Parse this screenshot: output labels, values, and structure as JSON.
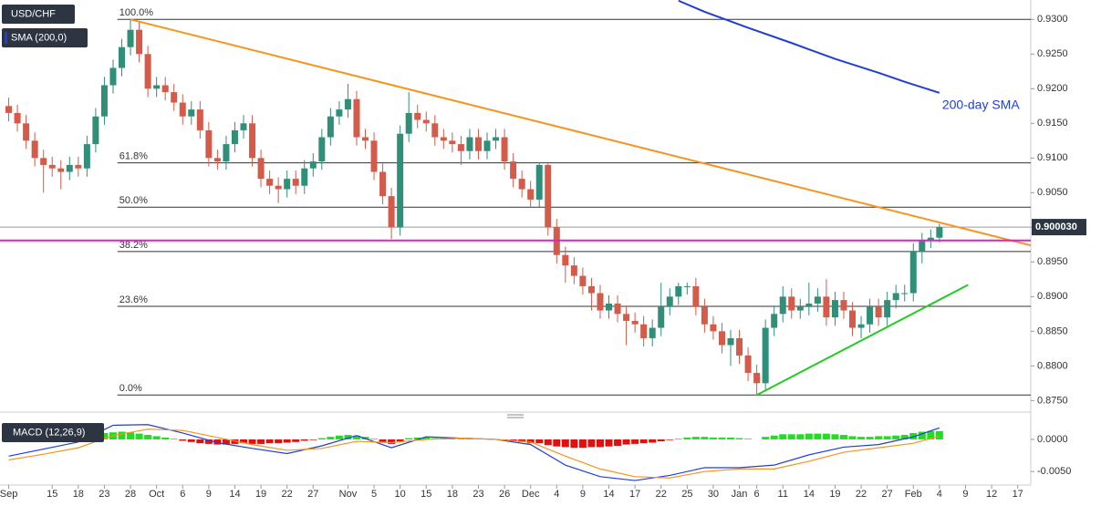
{
  "chart_data": {
    "type": "candlestick",
    "legend": [
      "USD/CHF",
      "SMA (200,0)"
    ],
    "ylim": [
      0.8736,
      0.9328
    ],
    "yticks": [
      {
        "value": 0.93,
        "label": "0.9300"
      },
      {
        "value": 0.925,
        "label": "0.9250"
      },
      {
        "value": 0.92,
        "label": "0.9200"
      },
      {
        "value": 0.915,
        "label": "0.9150"
      },
      {
        "value": 0.91,
        "label": "0.9100"
      },
      {
        "value": 0.905,
        "label": "0.9050"
      },
      {
        "value": 0.9,
        "label": "0.9000"
      },
      {
        "value": 0.895,
        "label": "0.8950"
      },
      {
        "value": 0.89,
        "label": "0.8900"
      },
      {
        "value": 0.885,
        "label": "0.8850"
      },
      {
        "value": 0.88,
        "label": "0.8800"
      },
      {
        "value": 0.875,
        "label": "0.8750"
      }
    ],
    "xlim": [
      -1,
      117.5
    ],
    "xticks": [
      {
        "value": 0,
        "label": "Sep"
      },
      {
        "value": 5,
        "label": "15"
      },
      {
        "value": 8,
        "label": "18"
      },
      {
        "value": 11,
        "label": "23"
      },
      {
        "value": 14,
        "label": "28"
      },
      {
        "value": 17,
        "label": "Oct"
      },
      {
        "value": 20,
        "label": "6"
      },
      {
        "value": 23,
        "label": "9"
      },
      {
        "value": 26,
        "label": "14"
      },
      {
        "value": 29,
        "label": "19"
      },
      {
        "value": 32,
        "label": "22"
      },
      {
        "value": 35,
        "label": "27"
      },
      {
        "value": 39,
        "label": "Nov"
      },
      {
        "value": 42,
        "label": "5"
      },
      {
        "value": 45,
        "label": "10"
      },
      {
        "value": 48,
        "label": "15"
      },
      {
        "value": 51,
        "label": "18"
      },
      {
        "value": 54,
        "label": "23"
      },
      {
        "value": 57,
        "label": "26"
      },
      {
        "value": 60,
        "label": "Dec"
      },
      {
        "value": 63,
        "label": "4"
      },
      {
        "value": 66,
        "label": "9"
      },
      {
        "value": 69,
        "label": "14"
      },
      {
        "value": 72,
        "label": "17"
      },
      {
        "value": 75,
        "label": "22"
      },
      {
        "value": 78,
        "label": "25"
      },
      {
        "value": 81,
        "label": "30"
      },
      {
        "value": 84,
        "label": "Jan"
      },
      {
        "value": 86,
        "label": "6"
      },
      {
        "value": 89,
        "label": "11"
      },
      {
        "value": 92,
        "label": "14"
      },
      {
        "value": 95,
        "label": "19"
      },
      {
        "value": 98,
        "label": "22"
      },
      {
        "value": 101,
        "label": "27"
      },
      {
        "value": 104,
        "label": "Feb"
      },
      {
        "value": 107,
        "label": "4"
      },
      {
        "value": 110,
        "label": "9"
      },
      {
        "value": 113,
        "label": "12"
      },
      {
        "value": 116,
        "label": "17"
      }
    ],
    "up_color": "#2f8f79",
    "down_color": "#d45a4a",
    "open": [
      0.9175,
      0.9165,
      0.915,
      0.9125,
      0.91,
      0.909,
      0.9085,
      0.908,
      0.909,
      0.9085,
      0.912,
      0.916,
      0.9205,
      0.923,
      0.926,
      0.9285,
      0.925,
      0.92,
      0.9205,
      0.9195,
      0.918,
      0.916,
      0.917,
      0.914,
      0.91,
      0.9095,
      0.912,
      0.914,
      0.915,
      0.91,
      0.907,
      0.906,
      0.9055,
      0.907,
      0.906,
      0.9085,
      0.9095,
      0.913,
      0.916,
      0.917,
      0.9185,
      0.913,
      0.9125,
      0.908,
      0.9045,
      0.9,
      0.9135,
      0.9165,
      0.9155,
      0.915,
      0.913,
      0.9125,
      0.912,
      0.911,
      0.913,
      0.911,
      0.9125,
      0.913,
      0.9095,
      0.907,
      0.9055,
      0.904,
      0.909,
      0.9,
      0.896,
      0.8945,
      0.893,
      0.8915,
      0.8905,
      0.888,
      0.889,
      0.8875,
      0.8865,
      0.886,
      0.884,
      0.8855,
      0.8885,
      0.89,
      0.8915,
      0.8915,
      0.8885,
      0.886,
      0.885,
      0.883,
      0.884,
      0.8815,
      0.879,
      0.8775,
      0.8855,
      0.8875,
      0.89,
      0.888,
      0.8885,
      0.889,
      0.89,
      0.887,
      0.8895,
      0.888,
      0.8855,
      0.886,
      0.8885,
      0.887,
      0.8895,
      0.8905,
      0.8905,
      0.8965,
      0.898,
      0.8985
    ],
    "high": [
      0.9187,
      0.9177,
      0.9162,
      0.9137,
      0.9112,
      0.9102,
      0.9097,
      0.9102,
      0.9102,
      0.9132,
      0.9172,
      0.9217,
      0.9242,
      0.9272,
      0.93,
      0.9297,
      0.9262,
      0.9217,
      0.9217,
      0.9207,
      0.9192,
      0.9182,
      0.9182,
      0.9152,
      0.9112,
      0.9132,
      0.9152,
      0.9162,
      0.9162,
      0.9112,
      0.9082,
      0.9072,
      0.9082,
      0.9082,
      0.9097,
      0.9107,
      0.9142,
      0.9172,
      0.9182,
      0.9207,
      0.9197,
      0.9142,
      0.9137,
      0.9092,
      0.9057,
      0.9147,
      0.9195,
      0.9177,
      0.9167,
      0.9162,
      0.9142,
      0.9137,
      0.9132,
      0.9142,
      0.9142,
      0.9137,
      0.9142,
      0.9142,
      0.9107,
      0.9082,
      0.9067,
      0.9092,
      0.9092,
      0.9012,
      0.8972,
      0.8957,
      0.8942,
      0.8927,
      0.8917,
      0.8902,
      0.8902,
      0.8887,
      0.8877,
      0.8872,
      0.8867,
      0.892,
      0.8912,
      0.892,
      0.892,
      0.8927,
      0.8897,
      0.8872,
      0.8862,
      0.8852,
      0.8852,
      0.8827,
      0.8802,
      0.8867,
      0.8887,
      0.8915,
      0.8912,
      0.8897,
      0.892,
      0.8912,
      0.8925,
      0.8907,
      0.8907,
      0.8892,
      0.8872,
      0.8897,
      0.8897,
      0.8907,
      0.8917,
      0.8917,
      0.8977,
      0.8992,
      0.8997,
      0.9005
    ],
    "low": [
      0.9153,
      0.9138,
      0.9113,
      0.9088,
      0.905,
      0.9073,
      0.9055,
      0.9068,
      0.9073,
      0.9073,
      0.9108,
      0.9148,
      0.9193,
      0.9218,
      0.9248,
      0.9238,
      0.9188,
      0.9188,
      0.9183,
      0.9168,
      0.9148,
      0.9148,
      0.9128,
      0.9088,
      0.9083,
      0.9083,
      0.9108,
      0.9128,
      0.9088,
      0.9058,
      0.9048,
      0.9035,
      0.9043,
      0.9048,
      0.9048,
      0.9073,
      0.9083,
      0.9118,
      0.9148,
      0.9158,
      0.9118,
      0.9113,
      0.9068,
      0.9033,
      0.8983,
      0.8988,
      0.9123,
      0.9143,
      0.9138,
      0.9118,
      0.9113,
      0.9108,
      0.909,
      0.9098,
      0.9098,
      0.9098,
      0.9113,
      0.9083,
      0.9058,
      0.9043,
      0.9028,
      0.9028,
      0.8988,
      0.8948,
      0.892,
      0.8918,
      0.8903,
      0.888,
      0.8868,
      0.8868,
      0.8863,
      0.883,
      0.8848,
      0.8828,
      0.8828,
      0.8843,
      0.8873,
      0.8888,
      0.8903,
      0.8873,
      0.8848,
      0.8838,
      0.8818,
      0.88,
      0.8803,
      0.8778,
      0.8758,
      0.8763,
      0.8843,
      0.8863,
      0.8868,
      0.8868,
      0.8873,
      0.8878,
      0.8858,
      0.8858,
      0.8868,
      0.8843,
      0.884,
      0.8848,
      0.8858,
      0.8858,
      0.8883,
      0.8893,
      0.8893,
      0.8948,
      0.897,
      0.8978
    ],
    "close": [
      0.9165,
      0.915,
      0.9125,
      0.91,
      0.909,
      0.9085,
      0.908,
      0.909,
      0.9085,
      0.912,
      0.916,
      0.9205,
      0.923,
      0.926,
      0.9285,
      0.925,
      0.92,
      0.9205,
      0.9195,
      0.918,
      0.916,
      0.917,
      0.914,
      0.91,
      0.9095,
      0.912,
      0.914,
      0.915,
      0.91,
      0.907,
      0.906,
      0.9055,
      0.907,
      0.906,
      0.9085,
      0.9095,
      0.913,
      0.916,
      0.917,
      0.9185,
      0.913,
      0.9125,
      0.908,
      0.9045,
      0.9,
      0.9135,
      0.9165,
      0.9155,
      0.915,
      0.913,
      0.9125,
      0.912,
      0.911,
      0.913,
      0.911,
      0.9125,
      0.913,
      0.9095,
      0.907,
      0.9055,
      0.904,
      0.909,
      0.9,
      0.896,
      0.8945,
      0.893,
      0.8915,
      0.8905,
      0.888,
      0.889,
      0.8875,
      0.8865,
      0.886,
      0.884,
      0.8855,
      0.8885,
      0.89,
      0.8915,
      0.8915,
      0.8885,
      0.886,
      0.885,
      0.883,
      0.884,
      0.8815,
      0.879,
      0.8775,
      0.8855,
      0.8875,
      0.89,
      0.888,
      0.8885,
      0.889,
      0.89,
      0.887,
      0.8895,
      0.888,
      0.8855,
      0.886,
      0.8885,
      0.887,
      0.8895,
      0.8905,
      0.8905,
      0.8965,
      0.898,
      0.8985,
      0.90003
    ],
    "last_price": {
      "value": 0.90003,
      "label": "0.900030",
      "color": "#999999"
    },
    "sma": {
      "name": "200-day SMA",
      "color": "#1f3fd6",
      "x": [
        77,
        80,
        85,
        90,
        95,
        100,
        103,
        107
      ],
      "values": [
        0.9327,
        0.9311,
        0.9288,
        0.9266,
        0.9243,
        0.9223,
        0.921,
        0.9194
      ]
    },
    "lines": [
      {
        "color": "#f7941d",
        "x": [
          14,
          117.8
        ],
        "values": [
          0.93,
          0.8973
        ]
      },
      {
        "color": "#22cc22",
        "x": [
          86,
          110.3
        ],
        "values": [
          0.8758,
          0.8917
        ]
      },
      {
        "color": "#e020d0",
        "x": [
          -1,
          117.5
        ],
        "values": [
          0.8981,
          0.8981
        ]
      }
    ],
    "fibonacci": {
      "start": 12.5,
      "levels": [
        0.93,
        0.9093,
        0.9029,
        0.8965,
        0.8886,
        0.8758
      ],
      "labels": [
        "100.0%",
        "61.8%",
        "50.0%",
        "38.2%",
        "23.6%",
        "0.0%"
      ]
    },
    "macd": {
      "name": "MACD (12,26,9)",
      "ylim": [
        -0.0071,
        0.0034
      ],
      "yticks": [
        {
          "value": 0,
          "label": "0.0000"
        },
        {
          "value": -0.005,
          "label": "-0.0050"
        }
      ],
      "up_color": "#22dd22",
      "down_color": "#e01010",
      "histogram": [
        0.0002,
        0.0003,
        0.0004,
        0.0004,
        0.0005,
        0.0005,
        0.0006,
        0.0006,
        0.0007,
        0.0008,
        0.0009,
        0.001,
        0.0011,
        0.0012,
        0.0011,
        0.0009,
        0.0007,
        0.0005,
        0.0003,
        0.0001,
        -0.0002,
        -0.0004,
        -0.0006,
        -0.0007,
        -0.0008,
        -0.0008,
        -0.0007,
        -0.0006,
        -0.0007,
        -0.0007,
        -0.0006,
        -0.0006,
        -0.0005,
        -0.0004,
        -0.0002,
        -0.0001,
        0.0002,
        0.0004,
        0.0006,
        0.0007,
        0.0006,
        0.0004,
        0.0001,
        -0.0004,
        -0.0007,
        -0.0003,
        0.0002,
        0.0003,
        0.0003,
        0.0002,
        0.0002,
        0.0001,
        0.0001,
        0.0001,
        0,
        0.0001,
        0,
        -0.0001,
        -0.0003,
        -0.0004,
        -0.0006,
        -0.0006,
        -0.0009,
        -0.0011,
        -0.0012,
        -0.0013,
        -0.0013,
        -0.0012,
        -0.0012,
        -0.0011,
        -0.001,
        -0.0008,
        -0.0007,
        -0.0006,
        -0.0005,
        -0.0003,
        -0.0001,
        0.0001,
        0.0003,
        0.0004,
        0.0004,
        0.0003,
        0.0003,
        0.0003,
        0.0002,
        0.0001,
        0,
        0.0004,
        0.0006,
        0.0008,
        0.0008,
        0.0008,
        0.0009,
        0.0009,
        0.0009,
        0.0008,
        0.0007,
        0.0005,
        0.0004,
        0.0004,
        0.0005,
        0.0005,
        0.0006,
        0.0007,
        0.001,
        0.0012,
        0.0013,
        0.0013
      ],
      "x": [
        0,
        4,
        8,
        12,
        16,
        20,
        24,
        28,
        32,
        36,
        40,
        44,
        48,
        52,
        56,
        60,
        64,
        68,
        72,
        76,
        80,
        84,
        88,
        92,
        96,
        100,
        104,
        107
      ],
      "series": [
        {
          "color": "#1f3fd6",
          "values": [
            -0.0026,
            -0.0015,
            -0.0004,
            0.0022,
            0.0023,
            0.001,
            -0.0005,
            -0.0014,
            -0.0022,
            -0.001,
            0.0006,
            -0.0013,
            0.0004,
            0.0002,
            0,
            -0.0008,
            -0.004,
            -0.0058,
            -0.0064,
            -0.0056,
            -0.0044,
            -0.0044,
            -0.004,
            -0.0024,
            -0.0012,
            -0.0008,
            0.0004,
            0.0018
          ]
        },
        {
          "color": "#f7941d",
          "values": [
            -0.0032,
            -0.0023,
            -0.0013,
            0.0006,
            0.0016,
            0.0014,
            0.0003,
            -0.0008,
            -0.0017,
            -0.0014,
            -0.0003,
            -0.0005,
            0,
            0.0002,
            0,
            -0.0004,
            -0.0026,
            -0.0046,
            -0.0058,
            -0.006,
            -0.005,
            -0.0046,
            -0.0046,
            -0.0034,
            -0.002,
            -0.0013,
            -0.0006,
            0.0005
          ]
        }
      ]
    }
  }
}
